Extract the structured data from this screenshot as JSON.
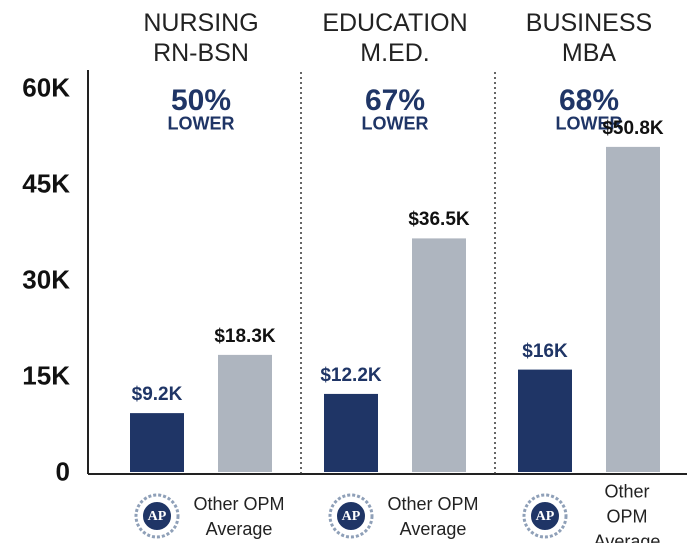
{
  "chart_data": {
    "type": "bar",
    "categories": [
      "NURSING\nRN-BSN",
      "EDUCATION\nM.ED.",
      "BUSINESS\nMBA"
    ],
    "series": [
      {
        "name": "AP",
        "color": "#1f3566",
        "values": [
          9200,
          12200,
          16000
        ],
        "value_labels": [
          "$9.2K",
          "$12.2K",
          "$16K"
        ]
      },
      {
        "name": "Other OPM\nAverage",
        "color": "#aeb5bf",
        "values": [
          18300,
          36500,
          50800
        ],
        "value_labels": [
          "$18.3K",
          "$36.5K",
          "$50.8K"
        ]
      }
    ],
    "annotations": [
      {
        "text": "50%",
        "label": "LOWER"
      },
      {
        "text": "67%",
        "label": "LOWER"
      },
      {
        "text": "68%",
        "label": "LOWER"
      }
    ],
    "ylim": [
      0,
      60000
    ],
    "yticks": [
      0,
      {
        "value": 15000,
        "label": "15K"
      },
      {
        "value": 30000,
        "label": "30K"
      },
      {
        "value": 45000,
        "label": "45K"
      },
      {
        "value": 60000,
        "label": "60K"
      }
    ],
    "grid": false
  }
}
